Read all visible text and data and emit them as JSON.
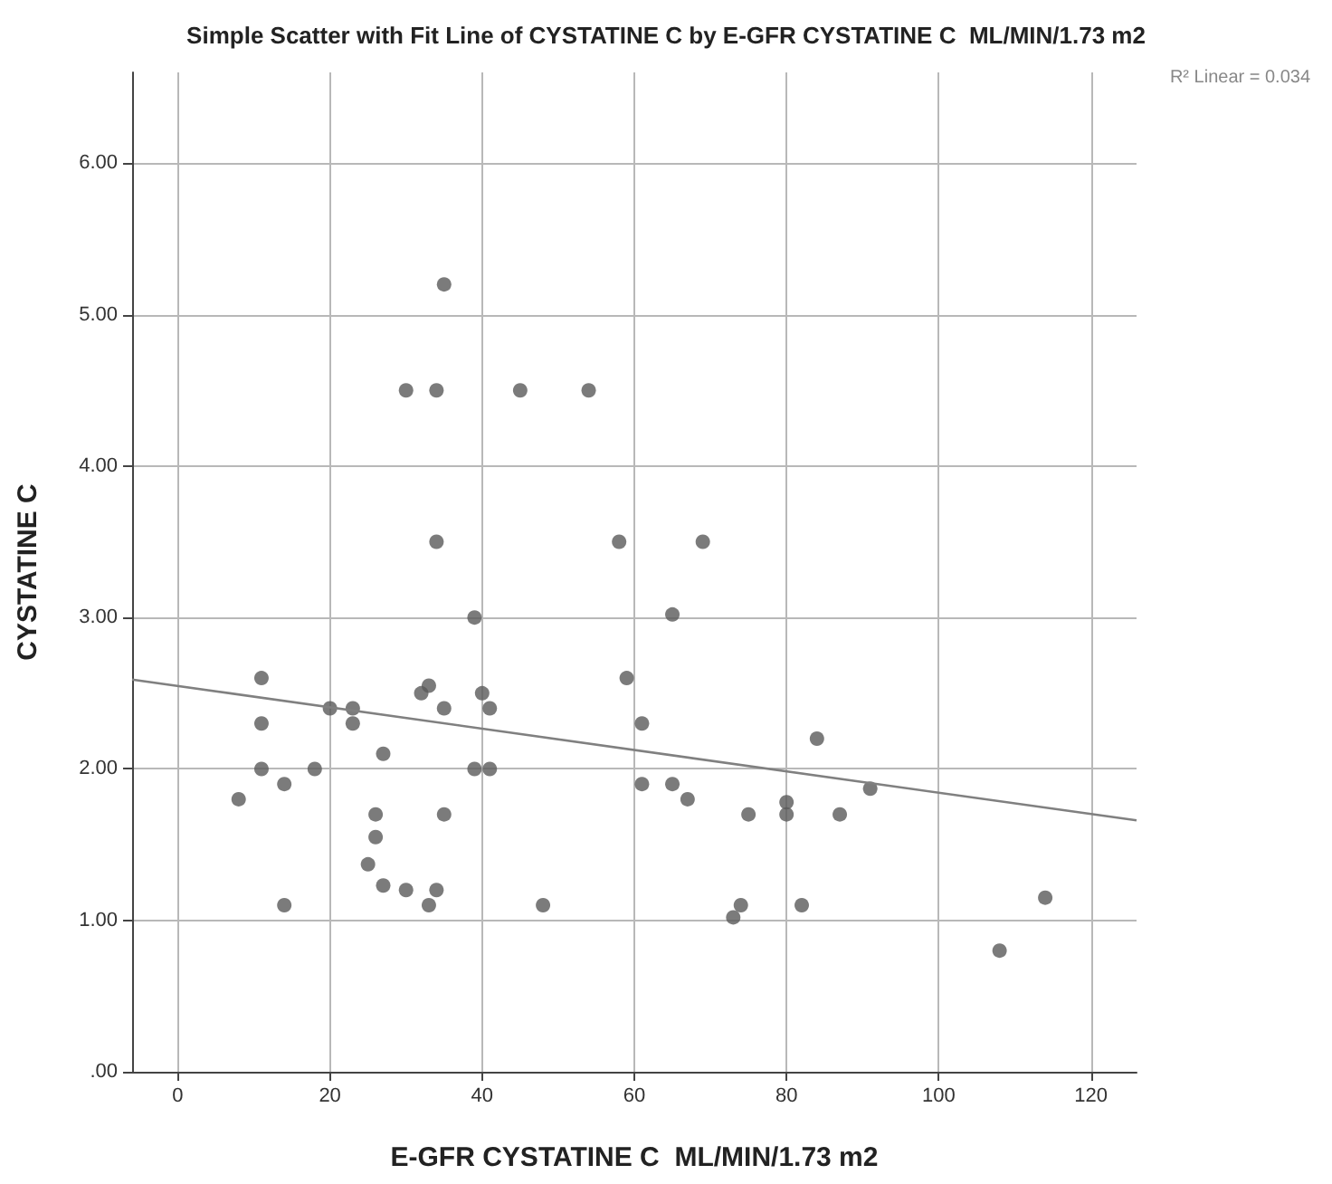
{
  "chart_data": {
    "type": "scatter",
    "title": "Simple Scatter with Fit Line of CYSTATINE C by E-GFR CYSTATINE C  ML/MIN/1.73 m2",
    "xlabel": "E-GFR CYSTATINE C  ML/MIN/1.73 m2",
    "ylabel": "CYSTATINE C",
    "annotations": [
      "R² Linear = 0.034"
    ],
    "series": [
      {
        "color": "#5a5a5a",
        "x": [
          8,
          11,
          11,
          11,
          14,
          14,
          18,
          20,
          23,
          23,
          27,
          26,
          26,
          25,
          27,
          30,
          33,
          34,
          30,
          34,
          35,
          34,
          32,
          33,
          35,
          35,
          39,
          39,
          41,
          40,
          41,
          45,
          48,
          54,
          58,
          69,
          59,
          65,
          61,
          61,
          65,
          67,
          73,
          74,
          75,
          80,
          80,
          82,
          84,
          87,
          91,
          108,
          114
        ],
        "values": [
          1.8,
          2.6,
          2.3,
          2.0,
          1.9,
          1.1,
          2.0,
          2.4,
          2.4,
          2.3,
          2.1,
          1.7,
          1.55,
          1.37,
          1.23,
          1.2,
          1.1,
          1.2,
          4.5,
          4.5,
          5.2,
          3.5,
          2.5,
          2.55,
          2.4,
          1.7,
          3.0,
          2.0,
          2.0,
          2.5,
          2.4,
          4.5,
          1.1,
          4.5,
          3.5,
          3.5,
          2.6,
          3.02,
          2.3,
          1.9,
          1.9,
          1.8,
          1.02,
          1.1,
          1.7,
          1.78,
          1.7,
          1.1,
          2.2,
          1.7,
          1.87,
          0.8,
          1.15
        ]
      },
      {
        "type": "line",
        "color": "#808080",
        "marker": "none",
        "x": [
          -6,
          126
        ],
        "values": [
          2.59,
          1.66
        ]
      }
    ],
    "xlim": [
      -6,
      126
    ],
    "xticks": [
      0,
      20,
      40,
      60,
      80,
      100,
      120
    ],
    "ylim": [
      0,
      6.6
    ],
    "yticks": [
      {
        "value": 0,
        "label": ".00"
      },
      {
        "value": 1,
        "label": "1.00"
      },
      {
        "value": 2,
        "label": "2.00"
      },
      {
        "value": 3,
        "label": "3.00"
      },
      {
        "value": 4,
        "label": "4.00"
      },
      {
        "value": 5,
        "label": "5.00"
      },
      {
        "value": 6,
        "label": "6.00"
      }
    ],
    "grid": true,
    "marker": "circle"
  }
}
